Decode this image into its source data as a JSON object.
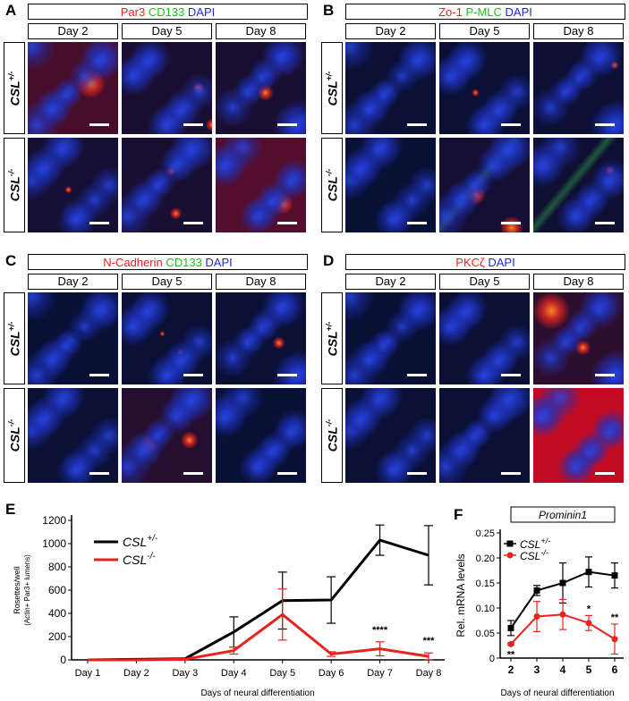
{
  "panels": {
    "A": {
      "letter": "A",
      "stains": [
        {
          "text": "Par3",
          "color": "#e8231f"
        },
        {
          "text": " CD133",
          "color": "#1fbf1f"
        },
        {
          "text": " DAPI",
          "color": "#1a2bd6"
        }
      ]
    },
    "B": {
      "letter": "B",
      "stains": [
        {
          "text": "Zo-1",
          "color": "#e8231f"
        },
        {
          "text": " P-MLC",
          "color": "#1fbf1f"
        },
        {
          "text": " DAPI",
          "color": "#1a2bd6"
        }
      ]
    },
    "C": {
      "letter": "C",
      "stains": [
        {
          "text": "N-Cadherin",
          "color": "#e8231f"
        },
        {
          "text": " CD133",
          "color": "#1fbf1f"
        },
        {
          "text": " DAPI",
          "color": "#1a2bd6"
        }
      ]
    },
    "D": {
      "letter": "D",
      "stains": [
        {
          "text": "PKCζ",
          "color": "#e8231f"
        },
        {
          "text": " DAPI",
          "color": "#1a2bd6"
        }
      ]
    }
  },
  "days": [
    "Day 2",
    "Day 5",
    "Day 8"
  ],
  "genotypes": {
    "het": {
      "base": "CSL",
      "sup": "+/-"
    },
    "ko": {
      "base": "CSL",
      "sup": "-/-"
    }
  },
  "chart_data": [
    {
      "panel": "E",
      "type": "line",
      "categories": [
        "Day 1",
        "Day 2",
        "Day 3",
        "Day 4",
        "Day 5",
        "Day 6",
        "Day 7",
        "Day 8"
      ],
      "series": [
        {
          "name": "CSL+/-",
          "color": "#000000",
          "values": [
            0,
            5,
            10,
            240,
            510,
            515,
            1030,
            900
          ],
          "err": [
            0,
            3,
            5,
            130,
            245,
            200,
            130,
            255
          ]
        },
        {
          "name": "CSL-/-",
          "color": "#e8231f",
          "values": [
            0,
            0,
            5,
            80,
            390,
            50,
            95,
            30
          ],
          "err": [
            0,
            0,
            2,
            30,
            220,
            20,
            60,
            30
          ]
        }
      ],
      "ylim": [
        0,
        1200
      ],
      "yticks": [
        0,
        200,
        400,
        600,
        800,
        1000,
        1200
      ],
      "ylabel": "Rosettes/well",
      "ylabel2": "(Actin+ Par3+ lumens)",
      "xlabel": "Days of neural differentiation",
      "annotations": [
        {
          "index": 6,
          "text": "****"
        },
        {
          "index": 7,
          "text": "***"
        }
      ],
      "legend": "top-left"
    },
    {
      "panel": "F",
      "type": "line",
      "title": "Prominin1",
      "categories": [
        "2",
        "3",
        "4",
        "5",
        "6"
      ],
      "series": [
        {
          "name": "CSL+/-",
          "color": "#000000",
          "values": [
            0.06,
            0.135,
            0.15,
            0.172,
            0.165
          ],
          "err": [
            0.015,
            0.01,
            0.04,
            0.03,
            0.025
          ]
        },
        {
          "name": "CSL-/-",
          "color": "#e8231f",
          "values": [
            0.028,
            0.083,
            0.087,
            0.07,
            0.038
          ],
          "err": [
            0.002,
            0.03,
            0.03,
            0.015,
            0.03
          ]
        }
      ],
      "ylim": [
        0,
        0.25
      ],
      "yticks": [
        "0",
        "0.05",
        "0.10",
        "0.15",
        "0.20",
        "0.25"
      ],
      "ylabel": "Rel. mRNA levels",
      "xlabel": "Days of neural differentiation",
      "annotations": [
        {
          "index": 0,
          "text": "**"
        },
        {
          "index": 3,
          "text": "*"
        },
        {
          "index": 4,
          "text": "**"
        }
      ],
      "legend": "top-left"
    }
  ],
  "labels": {
    "E": "E",
    "F": "F"
  }
}
